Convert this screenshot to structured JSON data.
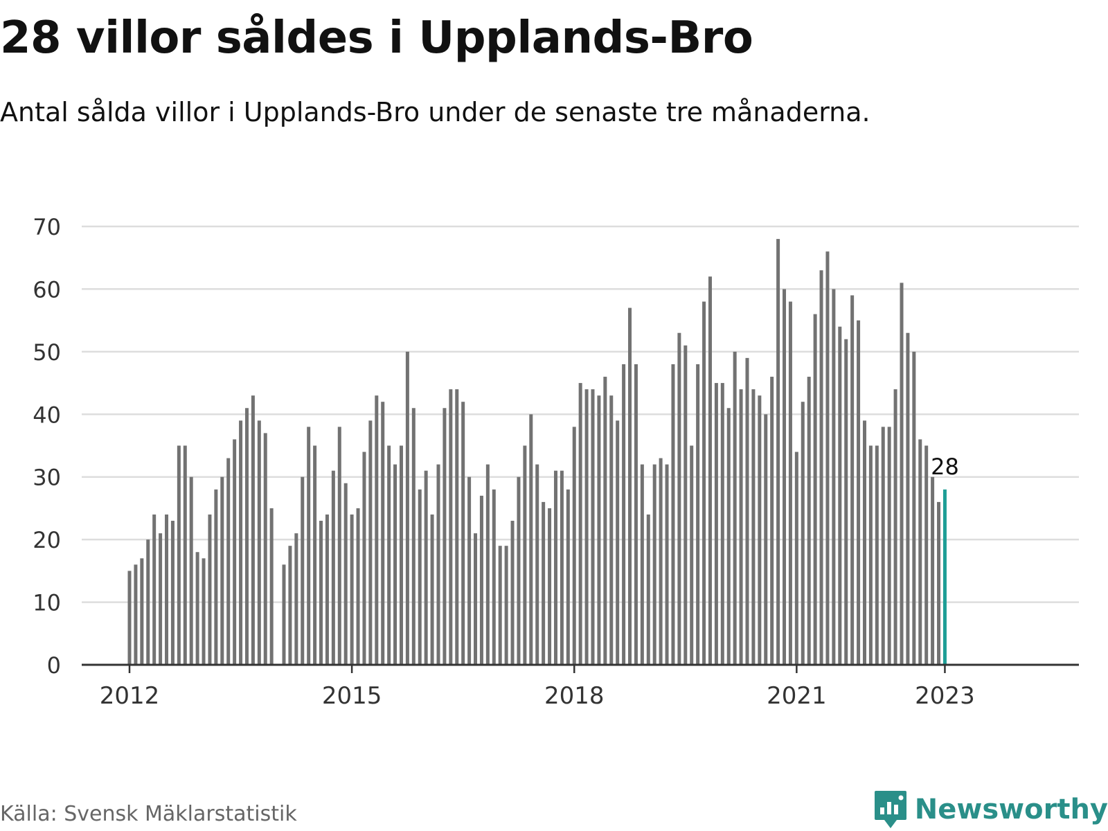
{
  "title": "28 villor såldes i Upplands-Bro",
  "subtitle": "Antal sålda villor i Upplands-Bro under de senaste tre månaderna.",
  "source": "Källa: Svensk Mäklarstatistik",
  "brand": "Newsworthy",
  "colors": {
    "bar": "#727272",
    "highlight": "#1e9e96",
    "grid": "#dddddd",
    "axis": "#333333",
    "brand": "#2a8f89"
  },
  "chart_data": {
    "type": "bar",
    "ylim": [
      0,
      70
    ],
    "yticks": [
      0,
      10,
      20,
      30,
      40,
      50,
      60,
      70
    ],
    "xticks": [
      {
        "label": "2012",
        "index": 0
      },
      {
        "label": "2015",
        "index": 36
      },
      {
        "label": "2018",
        "index": 72
      },
      {
        "label": "2021",
        "index": 108
      },
      {
        "label": "2023",
        "index": 132
      }
    ],
    "grid": true,
    "highlight_label": "28",
    "values": [
      15,
      16,
      17,
      20,
      24,
      21,
      24,
      23,
      35,
      35,
      30,
      18,
      17,
      24,
      28,
      30,
      33,
      36,
      39,
      41,
      43,
      39,
      37,
      25,
      null,
      16,
      19,
      21,
      30,
      38,
      35,
      23,
      24,
      31,
      38,
      29,
      24,
      25,
      34,
      39,
      43,
      42,
      35,
      32,
      35,
      50,
      41,
      28,
      31,
      24,
      32,
      41,
      44,
      44,
      42,
      30,
      21,
      27,
      32,
      28,
      19,
      19,
      23,
      30,
      35,
      40,
      32,
      26,
      25,
      31,
      31,
      28,
      38,
      45,
      44,
      44,
      43,
      46,
      43,
      39,
      48,
      57,
      48,
      32,
      24,
      32,
      33,
      32,
      48,
      53,
      51,
      35,
      48,
      58,
      62,
      45,
      45,
      41,
      50,
      44,
      49,
      44,
      43,
      40,
      46,
      68,
      60,
      58,
      34,
      42,
      46,
      56,
      63,
      66,
      60,
      54,
      52,
      59,
      55,
      39,
      35,
      35,
      38,
      38,
      44,
      61,
      53,
      50,
      36,
      35,
      30,
      26,
      28
    ]
  }
}
